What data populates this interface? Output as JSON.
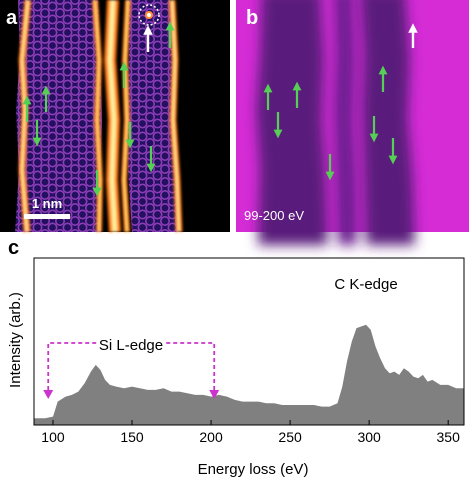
{
  "panels": {
    "a": {
      "letter": "a",
      "scalebar_label": "1 nm"
    },
    "b": {
      "letter": "b",
      "energy_range_label": "99-200 eV"
    },
    "c": {
      "letter": "c"
    }
  },
  "chart_data": {
    "type": "area",
    "title": "",
    "xlabel": "Energy loss (eV)",
    "ylabel": "Intensity (arb.)",
    "xlim": [
      88,
      360
    ],
    "xticks": [
      100,
      150,
      200,
      250,
      300,
      350
    ],
    "fill_color": "#808080",
    "annotations": [
      {
        "text": "Si L-edge",
        "markers_at_eV": [
          97,
          202
        ],
        "color": "#cc33cc"
      },
      {
        "text": "C K-edge"
      }
    ],
    "x": [
      88,
      95,
      100,
      103,
      108,
      112,
      116,
      120,
      124,
      127,
      130,
      133,
      136,
      140,
      145,
      150,
      155,
      160,
      165,
      170,
      175,
      180,
      185,
      190,
      195,
      200,
      205,
      210,
      215,
      220,
      225,
      230,
      235,
      240,
      245,
      250,
      255,
      260,
      265,
      270,
      275,
      280,
      283,
      286,
      289,
      292,
      295,
      298,
      301,
      304,
      307,
      310,
      313,
      316,
      319,
      322,
      325,
      328,
      331,
      334,
      337,
      340,
      345,
      350,
      355,
      360
    ],
    "y": [
      0.04,
      0.04,
      0.05,
      0.14,
      0.17,
      0.18,
      0.2,
      0.25,
      0.32,
      0.36,
      0.33,
      0.27,
      0.24,
      0.23,
      0.22,
      0.23,
      0.22,
      0.21,
      0.21,
      0.22,
      0.2,
      0.2,
      0.19,
      0.18,
      0.18,
      0.17,
      0.18,
      0.17,
      0.15,
      0.14,
      0.14,
      0.14,
      0.13,
      0.13,
      0.12,
      0.12,
      0.12,
      0.12,
      0.12,
      0.11,
      0.11,
      0.13,
      0.23,
      0.38,
      0.5,
      0.58,
      0.59,
      0.6,
      0.57,
      0.47,
      0.4,
      0.34,
      0.31,
      0.32,
      0.3,
      0.34,
      0.32,
      0.29,
      0.28,
      0.3,
      0.26,
      0.27,
      0.24,
      0.24,
      0.22,
      0.22
    ]
  }
}
